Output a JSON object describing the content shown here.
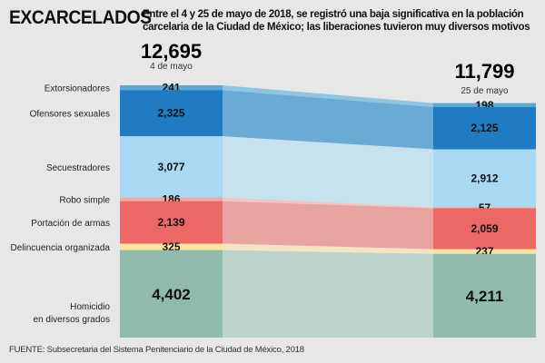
{
  "title": "EXCARCELADOS",
  "subtitle": "Entre el 4 y 25 de mayo de 2018, se registró una baja significativa en la población carcelaria de la Ciudad de México; las liberaciones tuvieron muy diversos motivos",
  "source": "FUENTE: Subsecretaria del Sistema Penitenciario de la Ciudad de México, 2018",
  "chart_data": {
    "type": "stacked-bar-flow",
    "columns": [
      {
        "date": "4 de mayo",
        "total": "12,695",
        "total_value": 12695
      },
      {
        "date": "25 de mayo",
        "total": "11,799",
        "total_value": 11799
      }
    ],
    "series": [
      {
        "name": "Extorsionadores",
        "values": [
          241,
          198
        ],
        "labels": [
          "241",
          "198"
        ],
        "color": "#5aa9d6",
        "flow_color": "#8fc4e2"
      },
      {
        "name": "Ofensores sexuales",
        "values": [
          2325,
          2125
        ],
        "labels": [
          "2,325",
          "2,125"
        ],
        "color": "#1f7bc2",
        "flow_color": "#6aabd6"
      },
      {
        "name": "Secuestradores",
        "values": [
          3077,
          2912
        ],
        "labels": [
          "3,077",
          "2,912"
        ],
        "color": "#a9d9f2",
        "flow_color": "#c8e1ee"
      },
      {
        "name": "Robo simple",
        "values": [
          186,
          57
        ],
        "labels": [
          "186",
          "57"
        ],
        "color": "#f3a7a2",
        "flow_color": "#f0c4c2"
      },
      {
        "name": "Portación de armas",
        "values": [
          2139,
          2059
        ],
        "labels": [
          "2,139",
          "2,059"
        ],
        "color": "#ec6865",
        "flow_color": "#e8a3a3"
      },
      {
        "name": "Delincuencia organizada",
        "values": [
          325,
          237
        ],
        "labels": [
          "325",
          "237"
        ],
        "color": "#fbe4a2",
        "flow_color": "#f3e5c4"
      },
      {
        "name": "Homicidio\nen diversos grados",
        "values": [
          4402,
          4211
        ],
        "labels": [
          "4,402",
          "4,211"
        ],
        "color": "#90bbab",
        "flow_color": "#bcd3cb"
      }
    ]
  }
}
